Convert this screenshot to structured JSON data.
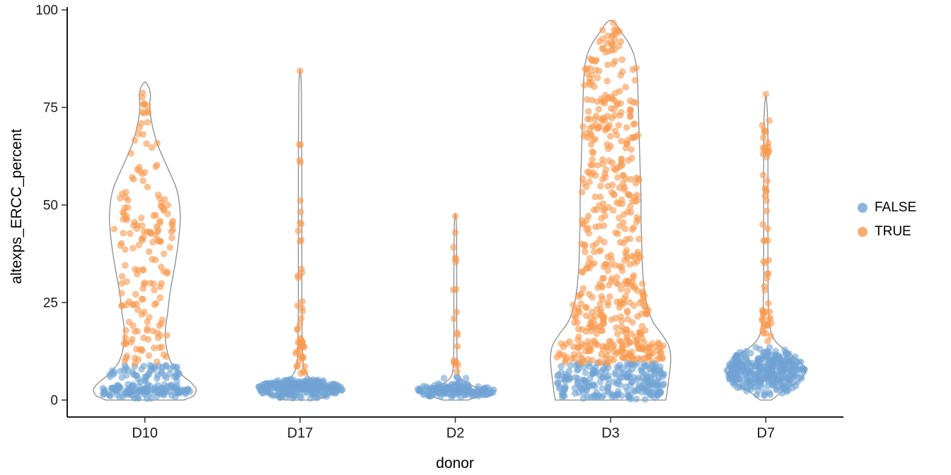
{
  "axes": {
    "x_label": "donor",
    "y_label": "altexps_ERCC_percent",
    "y_ticks": [
      0,
      25,
      50,
      75,
      100
    ],
    "y_lim": [
      0,
      100
    ]
  },
  "legend": {
    "entries": [
      {
        "label": "FALSE",
        "color": "#6FA3D3"
      },
      {
        "label": "TRUE",
        "color": "#F89A4E"
      }
    ]
  },
  "style": {
    "violin_stroke": "#8C8C8C",
    "point_radius": 4.8,
    "point_opacity": 0.6,
    "seed": 42
  },
  "chart_data": {
    "type": "scatter",
    "subtype": "violin-with-jittered-points",
    "title": "",
    "xlabel": "donor",
    "ylabel": "altexps_ERCC_percent",
    "ylim": [
      0,
      100
    ],
    "categories": [
      "D10",
      "D17",
      "D2",
      "D3",
      "D7"
    ],
    "groups": [
      "FALSE",
      "TRUE"
    ],
    "violins": [
      {
        "donor": "D10",
        "profile": [
          [
            0,
            55
          ],
          [
            1,
            68
          ],
          [
            2,
            72
          ],
          [
            3,
            72
          ],
          [
            4,
            68
          ],
          [
            5,
            62
          ],
          [
            6,
            55
          ],
          [
            8,
            44
          ],
          [
            10,
            36
          ],
          [
            14,
            30
          ],
          [
            18,
            29
          ],
          [
            22,
            32
          ],
          [
            28,
            36
          ],
          [
            34,
            42
          ],
          [
            40,
            47
          ],
          [
            46,
            50
          ],
          [
            50,
            49
          ],
          [
            54,
            45
          ],
          [
            58,
            36
          ],
          [
            62,
            26
          ],
          [
            66,
            17
          ],
          [
            70,
            11
          ],
          [
            73,
            8
          ],
          [
            76,
            7
          ],
          [
            78,
            8
          ],
          [
            80,
            6
          ],
          [
            81,
            3
          ],
          [
            81.5,
            0
          ]
        ]
      },
      {
        "donor": "D17",
        "profile": [
          [
            0,
            22
          ],
          [
            1,
            38
          ],
          [
            2,
            45
          ],
          [
            3,
            42
          ],
          [
            4,
            32
          ],
          [
            5,
            20
          ],
          [
            6,
            12
          ],
          [
            8,
            6
          ],
          [
            10,
            4
          ],
          [
            15,
            3
          ],
          [
            25,
            2.5
          ],
          [
            40,
            2.5
          ],
          [
            60,
            2.5
          ],
          [
            75,
            2
          ],
          [
            82,
            1.5
          ],
          [
            84.5,
            0
          ]
        ]
      },
      {
        "donor": "D2",
        "profile": [
          [
            0,
            18
          ],
          [
            1,
            33
          ],
          [
            1.8,
            38
          ],
          [
            2.5,
            35
          ],
          [
            3.5,
            26
          ],
          [
            4.5,
            15
          ],
          [
            5.5,
            8
          ],
          [
            7,
            4
          ],
          [
            10,
            2.5
          ],
          [
            20,
            2
          ],
          [
            35,
            2
          ],
          [
            45,
            1.5
          ],
          [
            47.5,
            0
          ]
        ]
      },
      {
        "donor": "D3",
        "profile": [
          [
            0,
            78
          ],
          [
            2,
            80
          ],
          [
            5,
            82
          ],
          [
            8,
            84
          ],
          [
            11,
            85
          ],
          [
            14,
            82
          ],
          [
            17,
            72
          ],
          [
            20,
            60
          ],
          [
            24,
            52
          ],
          [
            28,
            48
          ],
          [
            34,
            45
          ],
          [
            40,
            44
          ],
          [
            46,
            43
          ],
          [
            52,
            43
          ],
          [
            58,
            42
          ],
          [
            64,
            41
          ],
          [
            70,
            40
          ],
          [
            76,
            39
          ],
          [
            82,
            38
          ],
          [
            86,
            36
          ],
          [
            89,
            32
          ],
          [
            92,
            24
          ],
          [
            94,
            16
          ],
          [
            96,
            9
          ],
          [
            97,
            4
          ],
          [
            97.3,
            0
          ]
        ]
      },
      {
        "donor": "D7",
        "profile": [
          [
            0,
            8
          ],
          [
            2,
            22
          ],
          [
            4,
            40
          ],
          [
            6,
            52
          ],
          [
            7,
            56
          ],
          [
            8,
            56
          ],
          [
            9,
            52
          ],
          [
            11,
            40
          ],
          [
            13,
            26
          ],
          [
            15,
            14
          ],
          [
            17,
            8
          ],
          [
            20,
            5
          ],
          [
            25,
            3.5
          ],
          [
            35,
            3
          ],
          [
            50,
            3
          ],
          [
            65,
            3
          ],
          [
            72,
            2.5
          ],
          [
            76,
            1.5
          ],
          [
            78,
            0
          ]
        ]
      }
    ],
    "point_clusters": [
      {
        "donor": "D10",
        "group": "FALSE",
        "y_range": [
          0.2,
          4.5
        ],
        "n": 120,
        "halfwidth": 66,
        "shape": "blob"
      },
      {
        "donor": "D10",
        "group": "FALSE",
        "y_range": [
          4.5,
          9
        ],
        "n": 55,
        "halfwidth": 52,
        "shape": "band"
      },
      {
        "donor": "D10",
        "group": "TRUE",
        "y_range": [
          9,
          20
        ],
        "n": 38,
        "halfwidth": 32,
        "shape": "band"
      },
      {
        "donor": "D10",
        "group": "TRUE",
        "y_range": [
          20,
          35
        ],
        "n": 42,
        "halfwidth": 36,
        "shape": "band"
      },
      {
        "donor": "D10",
        "group": "TRUE",
        "y_range": [
          35,
          56
        ],
        "n": 70,
        "halfwidth": 45,
        "shape": "blob"
      },
      {
        "donor": "D10",
        "group": "TRUE",
        "y_range": [
          56,
          70
        ],
        "n": 18,
        "halfwidth": 20,
        "shape": "band"
      },
      {
        "donor": "D10",
        "group": "TRUE",
        "y_range": [
          70,
          81
        ],
        "n": 12,
        "halfwidth": 6,
        "shape": "spike"
      },
      {
        "donor": "D17",
        "group": "FALSE",
        "y_range": [
          0.3,
          5.5
        ],
        "n": 240,
        "halfwidth": 60,
        "shape": "blob"
      },
      {
        "donor": "D17",
        "group": "TRUE",
        "y_range": [
          6.5,
          16
        ],
        "n": 26,
        "halfwidth": 7,
        "shape": "spike"
      },
      {
        "donor": "D17",
        "group": "TRUE",
        "y_range": [
          16,
          34
        ],
        "n": 12,
        "halfwidth": 4,
        "shape": "spike"
      },
      {
        "donor": "D17",
        "group": "TRUE",
        "y_range": [
          34,
          52
        ],
        "n": 7,
        "halfwidth": 3,
        "shape": "spike"
      },
      {
        "donor": "D17",
        "group": "TRUE",
        "y_range": [
          60,
          68
        ],
        "n": 4,
        "halfwidth": 2.5,
        "shape": "spike"
      },
      {
        "donor": "D17",
        "group": "TRUE",
        "y_range": [
          84,
          84.8
        ],
        "n": 1,
        "halfwidth": 0,
        "shape": "spike"
      },
      {
        "donor": "D2",
        "group": "FALSE",
        "y_range": [
          0.3,
          4.5
        ],
        "n": 150,
        "halfwidth": 55,
        "shape": "blob"
      },
      {
        "donor": "D2",
        "group": "FALSE",
        "y_range": [
          4.5,
          6
        ],
        "n": 6,
        "halfwidth": 18,
        "shape": "band"
      },
      {
        "donor": "D2",
        "group": "TRUE",
        "y_range": [
          7,
          18
        ],
        "n": 9,
        "halfwidth": 4,
        "shape": "spike"
      },
      {
        "donor": "D2",
        "group": "TRUE",
        "y_range": [
          20,
          40
        ],
        "n": 8,
        "halfwidth": 3,
        "shape": "spike"
      },
      {
        "donor": "D2",
        "group": "TRUE",
        "y_range": [
          42,
          43
        ],
        "n": 1,
        "halfwidth": 0,
        "shape": "spike"
      },
      {
        "donor": "D2",
        "group": "TRUE",
        "y_range": [
          47,
          47.8
        ],
        "n": 1,
        "halfwidth": 0,
        "shape": "spike"
      },
      {
        "donor": "D3",
        "group": "FALSE",
        "y_range": [
          0.2,
          9.5
        ],
        "n": 230,
        "halfwidth": 78,
        "shape": "band"
      },
      {
        "donor": "D3",
        "group": "TRUE",
        "y_range": [
          9.5,
          15
        ],
        "n": 110,
        "halfwidth": 78,
        "shape": "band"
      },
      {
        "donor": "D3",
        "group": "TRUE",
        "y_range": [
          15,
          30
        ],
        "n": 130,
        "halfwidth": 55,
        "shape": "band"
      },
      {
        "donor": "D3",
        "group": "TRUE",
        "y_range": [
          30,
          60
        ],
        "n": 150,
        "halfwidth": 45,
        "shape": "band"
      },
      {
        "donor": "D3",
        "group": "TRUE",
        "y_range": [
          60,
          88
        ],
        "n": 130,
        "halfwidth": 40,
        "shape": "band"
      },
      {
        "donor": "D3",
        "group": "TRUE",
        "y_range": [
          88,
          97
        ],
        "n": 25,
        "halfwidth": 16,
        "shape": "blob"
      },
      {
        "donor": "D7",
        "group": "FALSE",
        "y_range": [
          1,
          14
        ],
        "n": 330,
        "halfwidth": 55,
        "shape": "blob"
      },
      {
        "donor": "D7",
        "group": "TRUE",
        "y_range": [
          14,
          25
        ],
        "n": 22,
        "halfwidth": 8,
        "shape": "spike"
      },
      {
        "donor": "D7",
        "group": "TRUE",
        "y_range": [
          25,
          50
        ],
        "n": 14,
        "halfwidth": 5,
        "shape": "spike"
      },
      {
        "donor": "D7",
        "group": "TRUE",
        "y_range": [
          50,
          63
        ],
        "n": 8,
        "halfwidth": 4,
        "shape": "spike"
      },
      {
        "donor": "D7",
        "group": "TRUE",
        "y_range": [
          63,
          73
        ],
        "n": 16,
        "halfwidth": 5,
        "shape": "spike"
      },
      {
        "donor": "D7",
        "group": "TRUE",
        "y_range": [
          78,
          78.6
        ],
        "n": 1,
        "halfwidth": 0,
        "shape": "spike"
      }
    ]
  }
}
